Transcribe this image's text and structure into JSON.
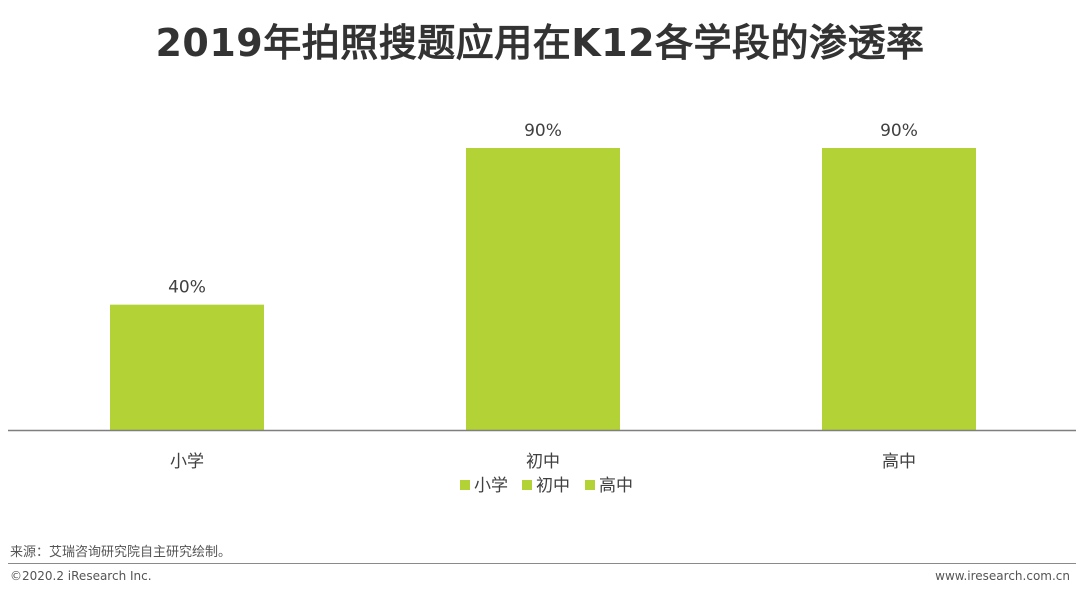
{
  "chart_data": {
    "type": "bar",
    "title": "2019年拍照搜题应用在K12各学段的渗透率",
    "categories": [
      "小学",
      "初中",
      "高中"
    ],
    "values": [
      40,
      90,
      90
    ],
    "value_labels": [
      "40%",
      "90%",
      "90%"
    ],
    "unit": "%",
    "ylim": [
      0,
      100
    ],
    "grid": false,
    "legend_placement": "bottom",
    "legend": [
      "小学",
      "初中",
      "高中"
    ],
    "bar_color": "#b2d235",
    "axis_color": "#7f7f7f"
  },
  "footer": {
    "source": "来源：艾瑞咨询研究院自主研究绘制。",
    "copyright": "©2020.2 iResearch Inc.",
    "website": "www.iresearch.com.cn"
  }
}
